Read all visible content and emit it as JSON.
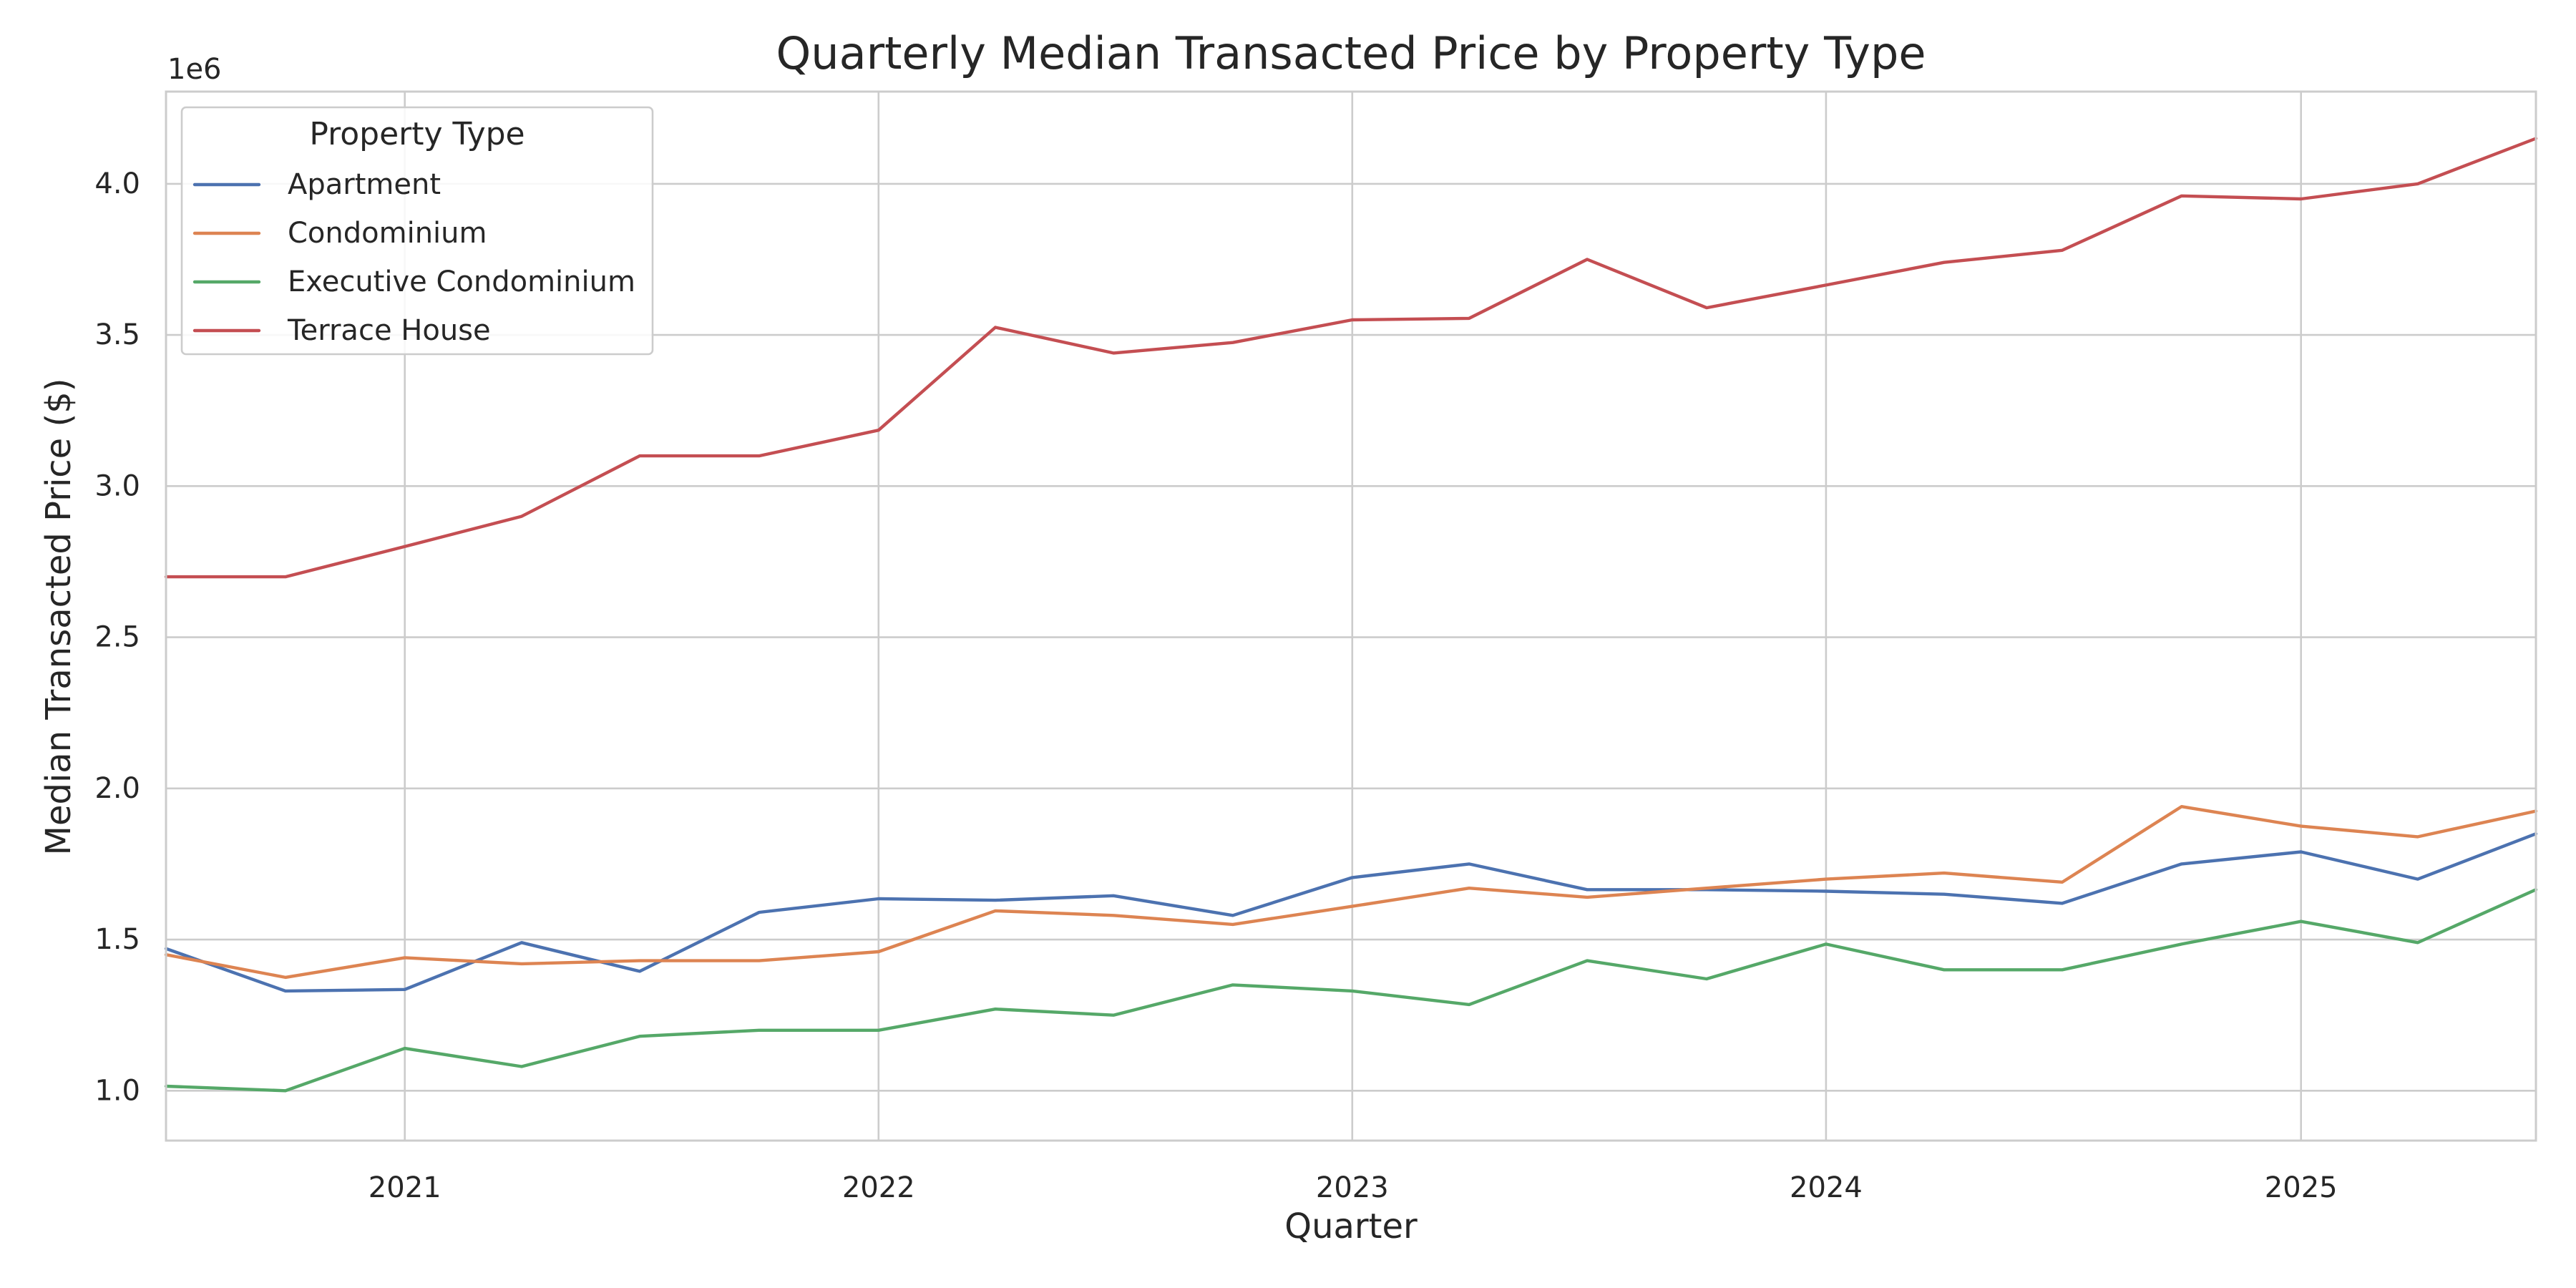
{
  "chart_data": {
    "type": "line",
    "title": "Quarterly Median Transacted Price by Property Type",
    "xlabel": "Quarter",
    "ylabel": "Median Transacted Price ($)",
    "y_offset_label": "1e6",
    "legend_title": "Property Type",
    "legend_position": "top-left",
    "grid": true,
    "x_range": [
      "2020-07-01",
      "2025-07-01"
    ],
    "ylim": [
      0.835,
      4.305
    ],
    "x_ticks": [
      {
        "date": "2021-01-01",
        "label": "2021"
      },
      {
        "date": "2022-01-01",
        "label": "2022"
      },
      {
        "date": "2023-01-01",
        "label": "2023"
      },
      {
        "date": "2024-01-01",
        "label": "2024"
      },
      {
        "date": "2025-01-01",
        "label": "2025"
      }
    ],
    "y_ticks": [
      {
        "value": 1.0,
        "label": "1.0"
      },
      {
        "value": 1.5,
        "label": "1.5"
      },
      {
        "value": 2.0,
        "label": "2.0"
      },
      {
        "value": 2.5,
        "label": "2.5"
      },
      {
        "value": 3.0,
        "label": "3.0"
      },
      {
        "value": 3.5,
        "label": "3.5"
      },
      {
        "value": 4.0,
        "label": "4.0"
      }
    ],
    "x": [
      "2020-07-01",
      "2020-10-01",
      "2021-01-01",
      "2021-04-01",
      "2021-07-01",
      "2021-10-01",
      "2022-01-01",
      "2022-04-01",
      "2022-07-01",
      "2022-10-01",
      "2023-01-01",
      "2023-04-01",
      "2023-07-01",
      "2023-10-01",
      "2024-01-01",
      "2024-04-01",
      "2024-07-01",
      "2024-10-01",
      "2025-01-01",
      "2025-04-01",
      "2025-07-01"
    ],
    "series": [
      {
        "name": "Apartment",
        "color": "#4c72b0",
        "values": [
          1.47,
          1.33,
          1.335,
          1.49,
          1.395,
          1.59,
          1.635,
          1.63,
          1.645,
          1.58,
          1.705,
          1.75,
          1.665,
          1.665,
          1.66,
          1.65,
          1.62,
          1.75,
          1.79,
          1.7,
          1.85
        ]
      },
      {
        "name": "Condominium",
        "color": "#dd8452",
        "values": [
          1.45,
          1.375,
          1.44,
          1.42,
          1.43,
          1.43,
          1.46,
          1.595,
          1.58,
          1.55,
          1.61,
          1.67,
          1.64,
          1.67,
          1.7,
          1.72,
          1.69,
          1.94,
          1.875,
          1.84,
          1.925
        ]
      },
      {
        "name": "Executive Condominium",
        "color": "#55a868",
        "values": [
          1.015,
          1.0,
          1.14,
          1.08,
          1.18,
          1.2,
          1.2,
          1.27,
          1.25,
          1.35,
          1.33,
          1.285,
          1.43,
          1.37,
          1.485,
          1.4,
          1.4,
          1.485,
          1.56,
          1.49,
          1.665
        ]
      },
      {
        "name": "Terrace House",
        "color": "#c44e52",
        "values": [
          2.7,
          2.7,
          2.8,
          2.9,
          3.1,
          3.1,
          3.185,
          3.525,
          3.44,
          3.475,
          3.55,
          3.555,
          3.75,
          3.59,
          3.665,
          3.74,
          3.78,
          3.96,
          3.95,
          4.0,
          4.15
        ]
      }
    ]
  }
}
